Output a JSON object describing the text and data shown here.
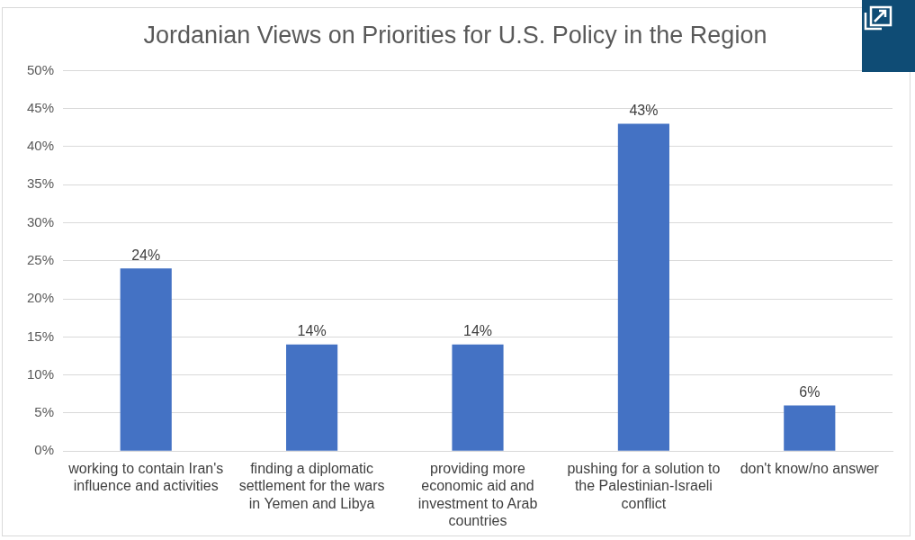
{
  "chart_data": {
    "type": "bar",
    "title": "Jordanian Views on Priorities for U.S. Policy in the Region",
    "categories": [
      "working to contain Iran's influence and activities",
      "finding a diplomatic settlement for the wars in Yemen and Libya",
      "providing more economic aid and investment to Arab countries",
      "pushing for a solution to the Palestinian-Israeli conflict",
      "don't know/no answer"
    ],
    "values": [
      24,
      14,
      14,
      43,
      6
    ],
    "value_labels": [
      "24%",
      "14%",
      "14%",
      "43%",
      "6%"
    ],
    "color": "#4472c4",
    "ylim": [
      0,
      50
    ],
    "yticks": [
      {
        "value": 0,
        "label": "0%"
      },
      {
        "value": 5,
        "label": "5%"
      },
      {
        "value": 10,
        "label": "10%"
      },
      {
        "value": 15,
        "label": "15%"
      },
      {
        "value": 20,
        "label": "20%"
      },
      {
        "value": 25,
        "label": "25%"
      },
      {
        "value": 30,
        "label": "30%"
      },
      {
        "value": 35,
        "label": "35%"
      },
      {
        "value": 40,
        "label": "40%"
      },
      {
        "value": 45,
        "label": "45%"
      },
      {
        "value": 50,
        "label": "50%"
      }
    ],
    "grid": "y",
    "legend": false
  }
}
